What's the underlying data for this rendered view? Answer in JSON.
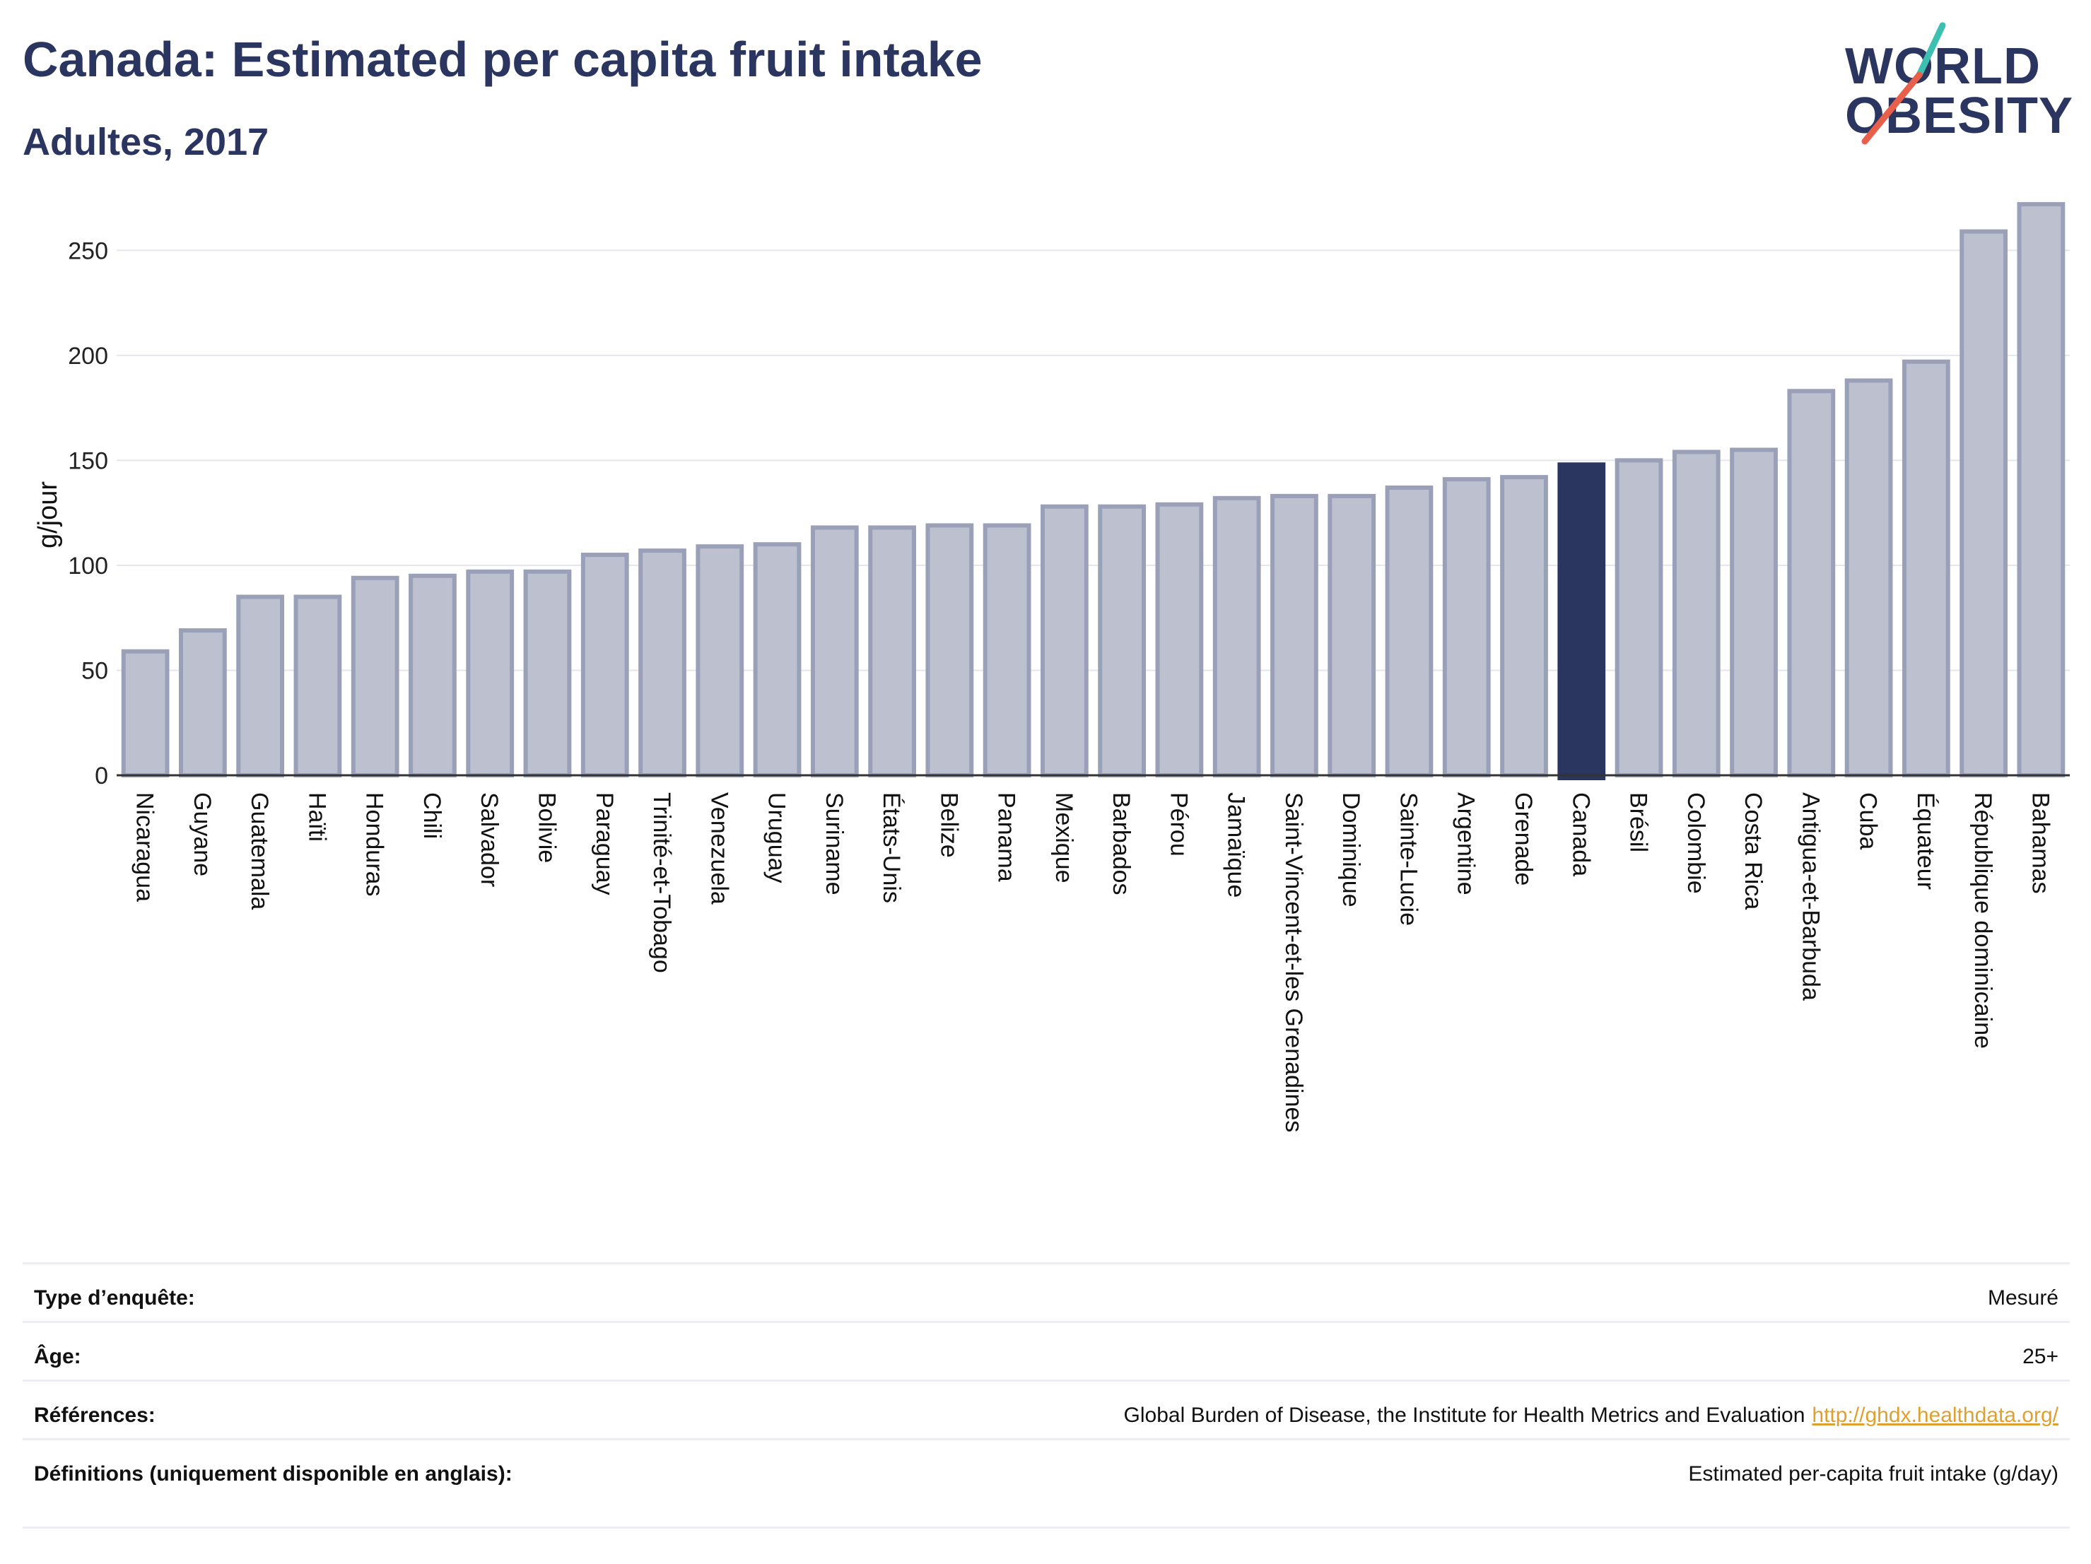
{
  "header": {
    "title": "Canada: Estimated per capita fruit intake",
    "subtitle": "Adultes, 2017"
  },
  "logo": {
    "line1": "WORLD",
    "line2": "OBESITY",
    "slash_top_color": "#3cc0b0",
    "slash_bottom_color": "#e8604c"
  },
  "colors": {
    "bar_fill": "#bcc0cf",
    "bar_stroke": "#9aa0b8",
    "highlight": "#2a3560",
    "grid": "#e4e6ee",
    "axis": "#333333"
  },
  "chart_data": {
    "type": "bar",
    "ylabel": "g/jour",
    "ylim": [
      0,
      275
    ],
    "yticks": [
      0,
      50,
      100,
      150,
      200,
      250
    ],
    "grid": true,
    "highlight_category": "Canada",
    "categories": [
      "Nicaragua",
      "Guyane",
      "Guatemala",
      "Haïti",
      "Honduras",
      "Chili",
      "Salvador",
      "Bolivie",
      "Paraguay",
      "Trinité-et-Tobago",
      "Venezuela",
      "Uruguay",
      "Suriname",
      "États-Unis",
      "Belize",
      "Panama",
      "Mexique",
      "Barbados",
      "Pérou",
      "Jamaïque",
      "Saint-Vincent-et-les Grenadines",
      "Dominique",
      "Sainte-Lucie",
      "Argentine",
      "Grenade",
      "Canada",
      "Brésil",
      "Colombie",
      "Costa Rica",
      "Antigua-et-Barbuda",
      "Cuba",
      "Équateur",
      "République dominicaine",
      "Bahamas"
    ],
    "values": [
      59,
      69,
      85,
      85,
      94,
      95,
      97,
      97,
      105,
      107,
      109,
      110,
      118,
      118,
      119,
      119,
      128,
      128,
      129,
      132,
      133,
      133,
      137,
      141,
      142,
      148,
      150,
      154,
      155,
      183,
      188,
      197,
      259,
      272
    ]
  },
  "info": {
    "rows": [
      {
        "key": "Type d’enquête:",
        "value": "Mesuré"
      },
      {
        "key": "Âge:",
        "value": "25+"
      },
      {
        "key": "Références:",
        "value": "Global Burden of Disease, the Institute for Health Metrics and Evaluation",
        "link": "http://ghdx.healthdata.org/"
      },
      {
        "key": "Définitions (uniquement disponible en anglais):",
        "value": "Estimated per-capita fruit intake (g/day)"
      }
    ]
  }
}
